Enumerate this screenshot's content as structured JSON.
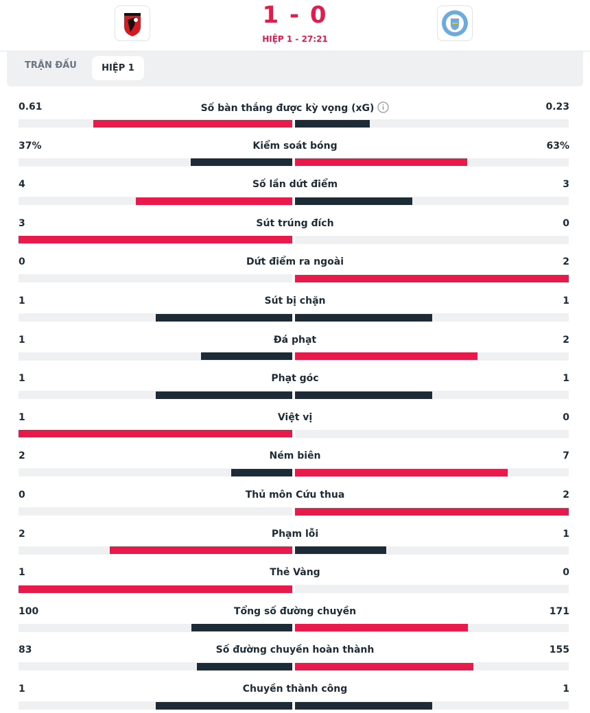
{
  "header": {
    "score": "1 - 0",
    "period": "HIỆP 1 - 27:21"
  },
  "tabs": [
    "TRẬN ĐẤU",
    "HIỆP 1"
  ],
  "stats": [
    {
      "label": "Số bàn thắng được kỳ vọng (xG)",
      "home": "0.61",
      "away": "0.23"
    },
    {
      "label": "Kiểm soát bóng",
      "home": "37%",
      "away": "63%"
    },
    {
      "label": "Số lần dứt điểm",
      "home": "4",
      "away": "3"
    },
    {
      "label": "Sút trúng đích",
      "home": "3",
      "away": "0"
    },
    {
      "label": "Dứt điểm ra ngoài",
      "home": "0",
      "away": "2"
    },
    {
      "label": "Sút bị chặn",
      "home": "1",
      "away": "1"
    },
    {
      "label": "Đá phạt",
      "home": "1",
      "away": "2"
    },
    {
      "label": "Phạt góc",
      "home": "1",
      "away": "1"
    },
    {
      "label": "Việt vị",
      "home": "1",
      "away": "0"
    },
    {
      "label": "Ném biên",
      "home": "2",
      "away": "7"
    },
    {
      "label": "Thủ môn Cứu thua",
      "home": "0",
      "away": "2"
    },
    {
      "label": "Phạm lỗi",
      "home": "2",
      "away": "1"
    },
    {
      "label": "Thẻ Vàng",
      "home": "1",
      "away": "0"
    },
    {
      "label": "Tổng số đường chuyền",
      "home": "100",
      "away": "171"
    },
    {
      "label": "Số đường chuyền hoàn thành",
      "home": "83",
      "away": "155"
    },
    {
      "label": "Chuyền thành công",
      "home": "1",
      "away": "1"
    }
  ]
}
